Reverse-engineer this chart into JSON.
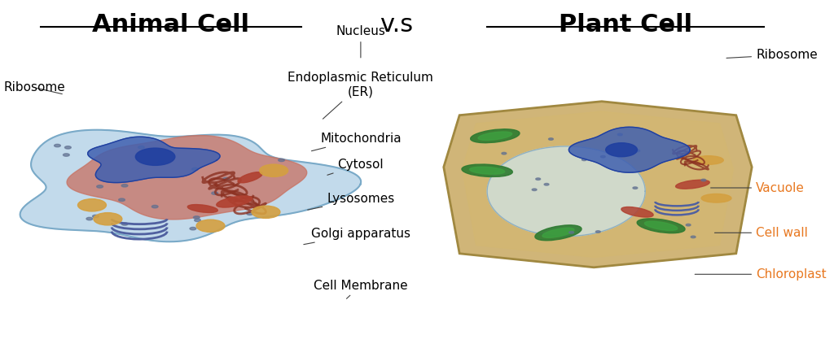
{
  "title_animal": "Animal Cell",
  "title_vs": "v.s",
  "title_plant": "Plant Cell",
  "background_color": "#ffffff",
  "title_fontsize": 22,
  "title_fontweight": "bold",
  "vs_fontsize": 22,
  "label_fontsize": 11,
  "orange_color": "#E87820",
  "black_color": "#000000",
  "figsize": [
    10.24,
    4.28
  ],
  "dpi": 100
}
